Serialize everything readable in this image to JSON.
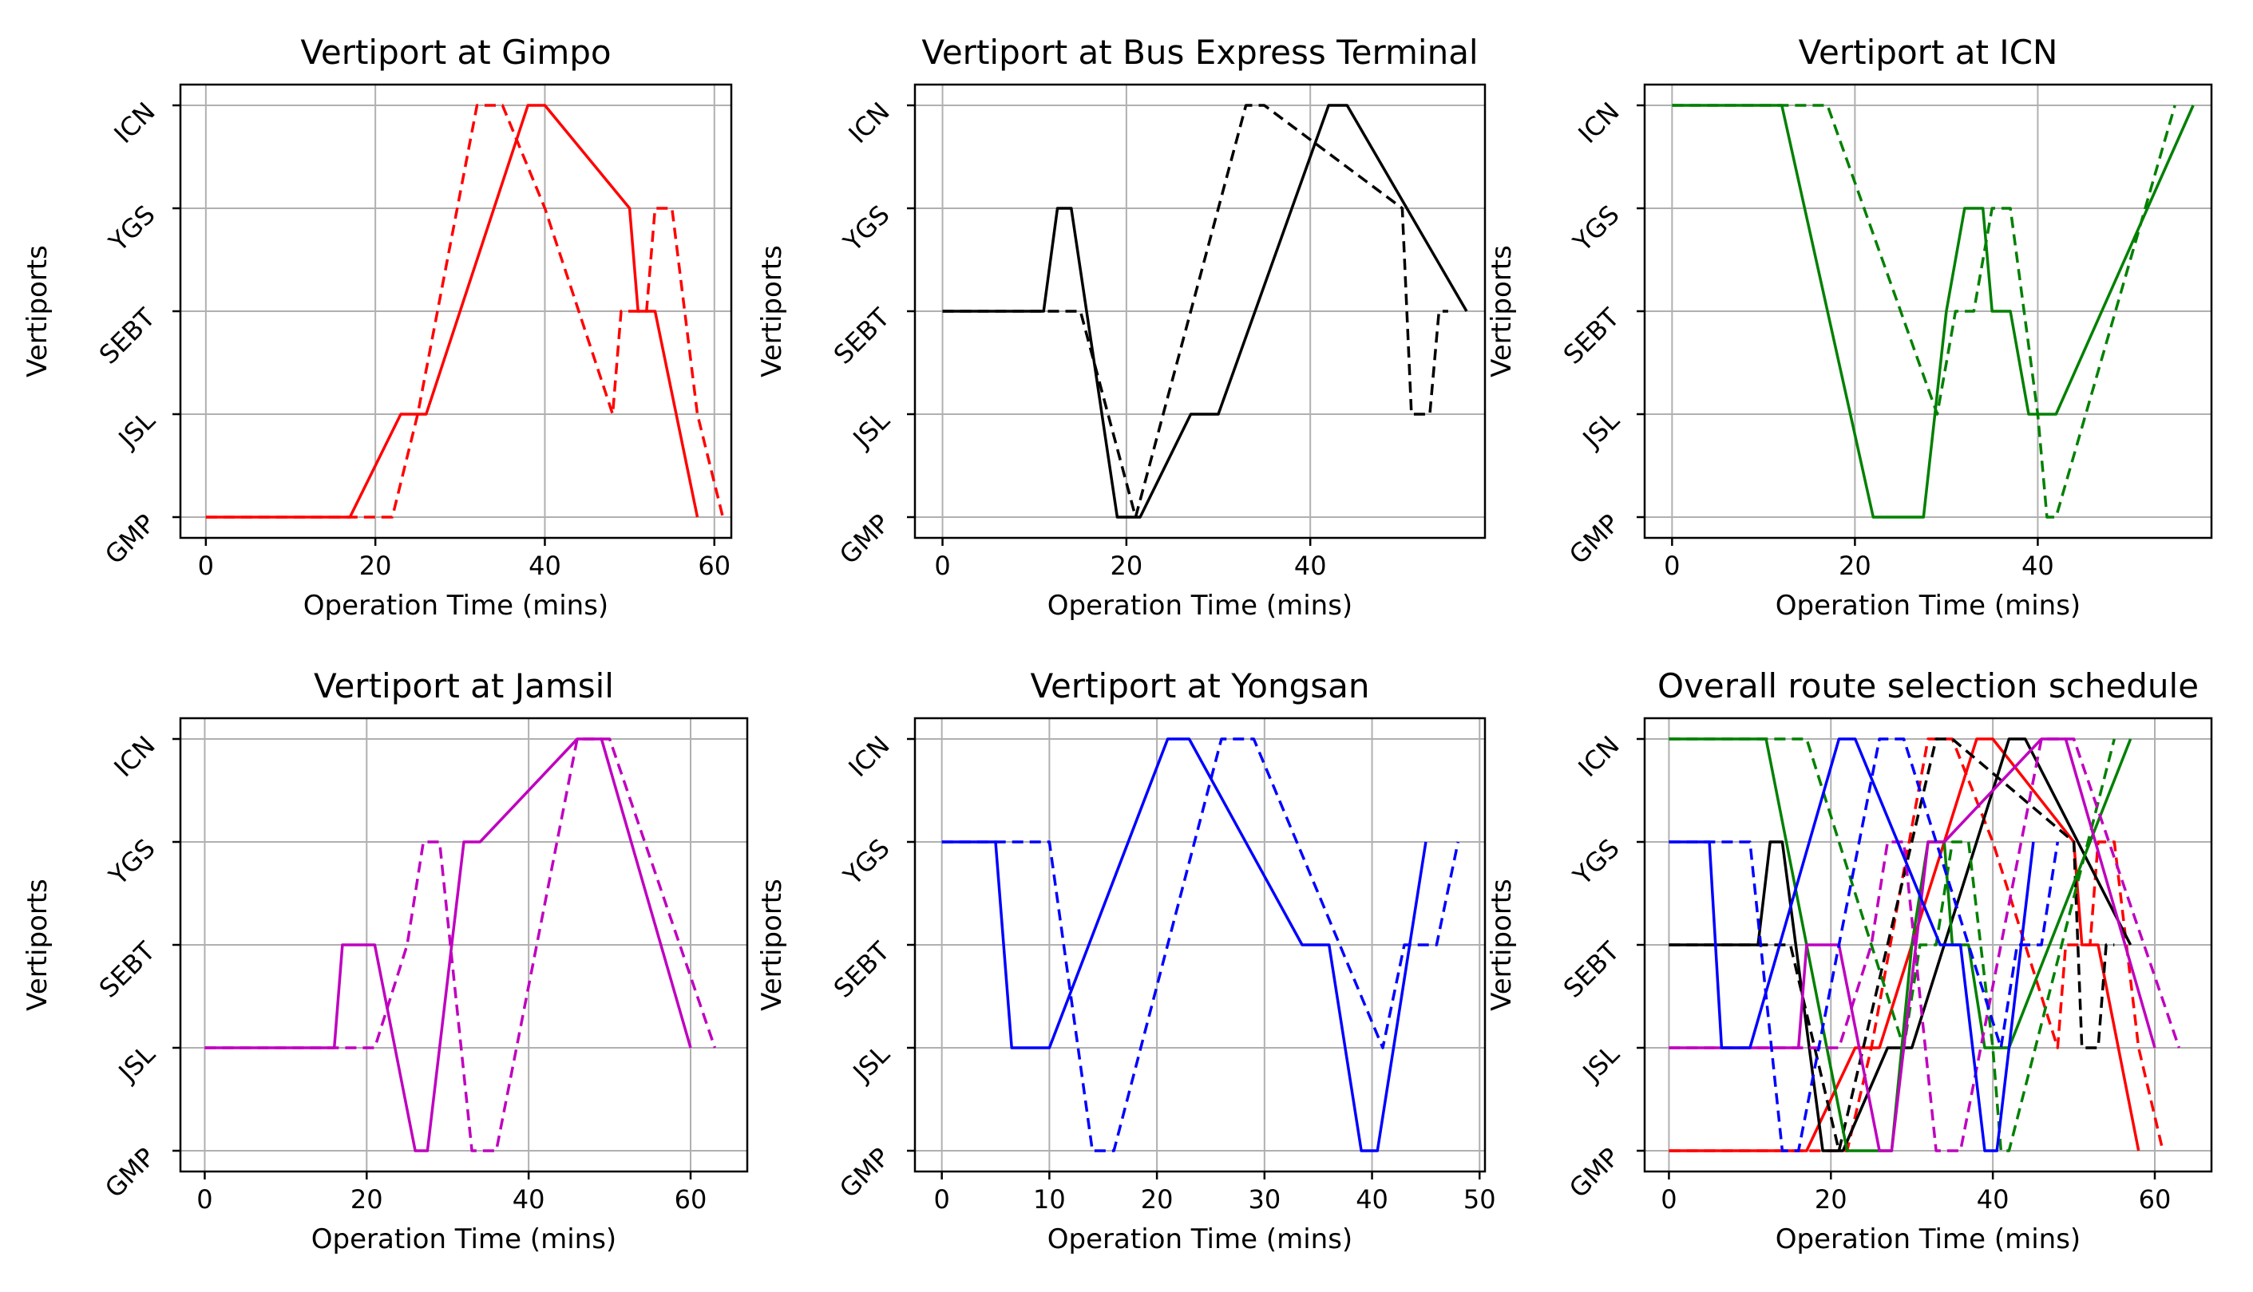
{
  "chart_data": [
    {
      "type": "line",
      "title": "Vertiport at Gimpo",
      "xlabel": "Operation Time (mins)",
      "ylabel": "Vertiports",
      "yticks": [
        "GMP",
        "JSL",
        "SEBT",
        "YGS",
        "ICN"
      ],
      "xticks": [
        0,
        20,
        40,
        60
      ],
      "xlim": [
        -3,
        62
      ],
      "series": [
        {
          "name": "solid",
          "color": "#ff0000",
          "dash": false,
          "x": [
            0,
            17,
            23,
            24.5,
            26,
            38,
            40,
            50,
            51,
            53,
            58
          ],
          "y": [
            0,
            0,
            1,
            1,
            1,
            4,
            4,
            3,
            2,
            2,
            0
          ]
        },
        {
          "name": "dashed",
          "color": "#ff0000",
          "dash": true,
          "x": [
            0,
            21,
            22,
            25,
            32,
            35,
            40,
            48,
            49,
            52,
            53,
            55,
            58,
            61
          ],
          "y": [
            0,
            0,
            0,
            1,
            4,
            4,
            3,
            1,
            2,
            2,
            3,
            3,
            1,
            0
          ]
        }
      ]
    },
    {
      "type": "line",
      "title": "Vertiport at Bus Express Terminal",
      "xlabel": "Operation Time (mins)",
      "ylabel": "Vertiports",
      "yticks": [
        "GMP",
        "JSL",
        "SEBT",
        "YGS",
        "ICN"
      ],
      "xticks": [
        0,
        20,
        40
      ],
      "xlim": [
        -3,
        59
      ],
      "series": [
        {
          "name": "solid",
          "color": "#000000",
          "dash": false,
          "x": [
            0,
            11,
            12.5,
            14,
            19,
            21.5,
            27,
            30,
            42,
            44,
            57
          ],
          "y": [
            2,
            2,
            3,
            3,
            0,
            0,
            1,
            1,
            4,
            4,
            2
          ]
        },
        {
          "name": "dashed",
          "color": "#000000",
          "dash": true,
          "x": [
            0,
            15,
            21,
            33,
            35,
            50,
            51,
            53,
            54,
            55
          ],
          "y": [
            2,
            2,
            0,
            4,
            4,
            3,
            1,
            1,
            2,
            2
          ]
        }
      ]
    },
    {
      "type": "line",
      "title": "Vertiport at ICN",
      "xlabel": "Operation Time (mins)",
      "ylabel": "Vertiports",
      "yticks": [
        "GMP",
        "JSL",
        "SEBT",
        "YGS",
        "ICN"
      ],
      "xticks": [
        0,
        20,
        40
      ],
      "xlim": [
        -3,
        59
      ],
      "series": [
        {
          "name": "solid",
          "color": "#008000",
          "dash": false,
          "x": [
            0,
            12,
            22,
            27.5,
            30,
            32,
            34,
            35,
            37,
            39,
            42,
            57
          ],
          "y": [
            4,
            4,
            0,
            0,
            2,
            3,
            3,
            2,
            2,
            1,
            1,
            4
          ]
        },
        {
          "name": "dashed",
          "color": "#008000",
          "dash": true,
          "x": [
            0,
            17,
            29,
            31,
            33,
            35,
            37,
            40,
            41,
            42,
            55
          ],
          "y": [
            4,
            4,
            1,
            2,
            2,
            3,
            3,
            1,
            0,
            0,
            4
          ]
        }
      ]
    },
    {
      "type": "line",
      "title": "Vertiport at Jamsil",
      "xlabel": "Operation Time (mins)",
      "ylabel": "Vertiports",
      "yticks": [
        "GMP",
        "JSL",
        "SEBT",
        "YGS",
        "ICN"
      ],
      "xticks": [
        0,
        20,
        40,
        60
      ],
      "xlim": [
        -3,
        67
      ],
      "series": [
        {
          "name": "solid",
          "color": "#bf00bf",
          "dash": false,
          "x": [
            0,
            16,
            17,
            21,
            26,
            27.5,
            32,
            34,
            46,
            49,
            60
          ],
          "y": [
            1,
            1,
            2,
            2,
            0,
            0,
            3,
            3,
            4,
            4,
            1
          ]
        },
        {
          "name": "dashed",
          "color": "#bf00bf",
          "dash": true,
          "x": [
            0,
            21,
            25,
            27,
            29,
            33,
            36,
            46,
            50,
            63
          ],
          "y": [
            1,
            1,
            2,
            3,
            3,
            0,
            0,
            4,
            4,
            1
          ]
        }
      ]
    },
    {
      "type": "line",
      "title": "Vertiport at Yongsan",
      "xlabel": "Operation Time (mins)",
      "ylabel": "Vertiports",
      "yticks": [
        "GMP",
        "JSL",
        "SEBT",
        "YGS",
        "ICN"
      ],
      "xticks": [
        0,
        10,
        20,
        30,
        40,
        50
      ],
      "xlim": [
        -2.5,
        50.5
      ],
      "series": [
        {
          "name": "solid",
          "color": "#0000ff",
          "dash": false,
          "x": [
            0,
            5,
            6.5,
            10,
            21,
            23,
            33.5,
            36,
            39,
            40.5,
            45
          ],
          "y": [
            3,
            3,
            1,
            1,
            4,
            4,
            2,
            2,
            0,
            0,
            3
          ]
        },
        {
          "name": "dashed",
          "color": "#0000ff",
          "dash": true,
          "x": [
            0,
            10,
            14,
            16,
            26,
            29,
            41,
            43,
            46,
            48
          ],
          "y": [
            3,
            3,
            0,
            0,
            4,
            4,
            1,
            2,
            2,
            3
          ]
        }
      ]
    },
    {
      "type": "line",
      "title": "Overall route selection schedule",
      "xlabel": "Operation Time (mins)",
      "ylabel": "Vertiports",
      "yticks": [
        "GMP",
        "JSL",
        "SEBT",
        "YGS",
        "ICN"
      ],
      "xticks": [
        0,
        20,
        40,
        60
      ],
      "xlim": [
        -3,
        67
      ],
      "series": [
        {
          "name": "gimpo-solid",
          "color": "#ff0000",
          "dash": false,
          "x": [
            0,
            17,
            23,
            24.5,
            26,
            38,
            40,
            50,
            51,
            53,
            58
          ],
          "y": [
            0,
            0,
            1,
            1,
            1,
            4,
            4,
            3,
            2,
            2,
            0
          ]
        },
        {
          "name": "gimpo-dashed",
          "color": "#ff0000",
          "dash": true,
          "x": [
            0,
            21,
            22,
            25,
            32,
            35,
            40,
            48,
            49,
            52,
            53,
            55,
            58,
            61
          ],
          "y": [
            0,
            0,
            0,
            1,
            4,
            4,
            3,
            1,
            2,
            2,
            3,
            3,
            1,
            0
          ]
        },
        {
          "name": "sebt-solid",
          "color": "#000000",
          "dash": false,
          "x": [
            0,
            11,
            12.5,
            14,
            19,
            21.5,
            27,
            30,
            42,
            44,
            57
          ],
          "y": [
            2,
            2,
            3,
            3,
            0,
            0,
            1,
            1,
            4,
            4,
            2
          ]
        },
        {
          "name": "sebt-dashed",
          "color": "#000000",
          "dash": true,
          "x": [
            0,
            15,
            21,
            33,
            35,
            50,
            51,
            53,
            54,
            55
          ],
          "y": [
            2,
            2,
            0,
            4,
            4,
            3,
            1,
            1,
            2,
            2
          ]
        },
        {
          "name": "icn-solid",
          "color": "#008000",
          "dash": false,
          "x": [
            0,
            12,
            22,
            27.5,
            30,
            32,
            34,
            35,
            37,
            39,
            42,
            57
          ],
          "y": [
            4,
            4,
            0,
            0,
            2,
            3,
            3,
            2,
            2,
            1,
            1,
            4
          ]
        },
        {
          "name": "icn-dashed",
          "color": "#008000",
          "dash": true,
          "x": [
            0,
            17,
            29,
            31,
            33,
            35,
            37,
            40,
            41,
            42,
            55
          ],
          "y": [
            4,
            4,
            1,
            2,
            2,
            3,
            3,
            1,
            0,
            0,
            4
          ]
        },
        {
          "name": "jamsil-solid",
          "color": "#bf00bf",
          "dash": false,
          "x": [
            0,
            16,
            17,
            21,
            26,
            27.5,
            32,
            34,
            46,
            49,
            60
          ],
          "y": [
            1,
            1,
            2,
            2,
            0,
            0,
            3,
            3,
            4,
            4,
            1
          ]
        },
        {
          "name": "jamsil-dashed",
          "color": "#bf00bf",
          "dash": true,
          "x": [
            0,
            21,
            25,
            27,
            29,
            33,
            36,
            46,
            50,
            63
          ],
          "y": [
            1,
            1,
            2,
            3,
            3,
            0,
            0,
            4,
            4,
            1
          ]
        },
        {
          "name": "yongsan-solid",
          "color": "#0000ff",
          "dash": false,
          "x": [
            0,
            5,
            6.5,
            10,
            21,
            23,
            33.5,
            36,
            39,
            40.5,
            45
          ],
          "y": [
            3,
            3,
            1,
            1,
            4,
            4,
            2,
            2,
            0,
            0,
            3
          ]
        },
        {
          "name": "yongsan-dashed",
          "color": "#0000ff",
          "dash": true,
          "x": [
            0,
            10,
            14,
            16,
            26,
            29,
            41,
            43,
            46,
            48
          ],
          "y": [
            3,
            3,
            0,
            0,
            4,
            4,
            1,
            2,
            2,
            3
          ]
        }
      ]
    }
  ]
}
